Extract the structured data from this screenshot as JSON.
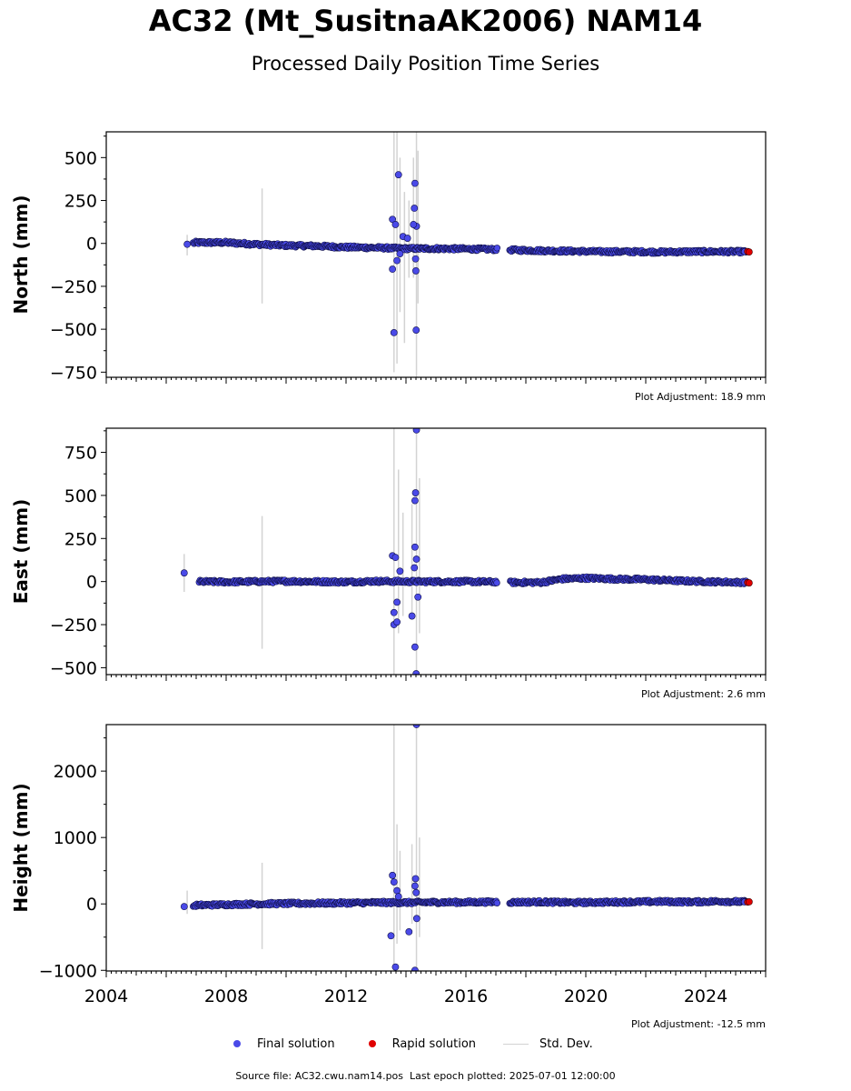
{
  "title": "AC32 (Mt_SusitnaAK2006) NAM14",
  "subtitle": "Processed Daily Position Time Series",
  "legend": {
    "final_label": "Final solution",
    "rapid_label": "Rapid solution",
    "std_label": "Std. Dev."
  },
  "footer": {
    "source_label": "Source file: AC32.cwu.nam14.pos",
    "last_epoch_label": "Last epoch plotted: 2025-07-01 12:00:00"
  },
  "colors": {
    "final": "#4a4ae8",
    "rapid": "#e00000",
    "std": "#d3d3d3",
    "outline": "#000000"
  },
  "chart_data": [
    {
      "type": "scatter",
      "ylabel": "North (mm)",
      "adjustment_label": "Plot Adjustment: 18.9 mm",
      "xlim": [
        2004,
        2026
      ],
      "ylim": [
        -780,
        650
      ],
      "yticks": [
        500,
        250,
        0,
        -250,
        -500,
        -750
      ],
      "ytick_labels": [
        "500",
        "250",
        "0",
        "−250",
        "−500",
        "−750"
      ],
      "trend": [
        [
          2006.7,
          -5
        ],
        [
          2007.0,
          5
        ],
        [
          2008.0,
          5
        ],
        [
          2009.0,
          -5
        ],
        [
          2010.0,
          -12
        ],
        [
          2011.0,
          -15
        ],
        [
          2012.0,
          -22
        ],
        [
          2013.0,
          -25
        ],
        [
          2014.0,
          -30
        ],
        [
          2015.0,
          -30
        ],
        [
          2016.0,
          -32
        ],
        [
          2017.0,
          -35
        ],
        [
          2017.5,
          -38
        ],
        [
          2018.5,
          -42
        ],
        [
          2019.5,
          -45
        ],
        [
          2020.5,
          -48
        ],
        [
          2021.5,
          -48
        ],
        [
          2022.5,
          -50
        ],
        [
          2023.5,
          -48
        ],
        [
          2024.5,
          -48
        ],
        [
          2025.4,
          -48
        ]
      ],
      "gaps": [
        [
          2017.05,
          2017.45
        ]
      ],
      "outliers": [
        [
          2006.7,
          -5
        ],
        [
          2013.55,
          140
        ],
        [
          2013.65,
          110
        ],
        [
          2013.75,
          400
        ],
        [
          2013.6,
          -520
        ],
        [
          2013.55,
          -150
        ],
        [
          2013.7,
          -100
        ],
        [
          2013.8,
          -60
        ],
        [
          2013.9,
          40
        ],
        [
          2014.05,
          30
        ],
        [
          2014.3,
          350
        ],
        [
          2014.28,
          205
        ],
        [
          2014.35,
          100
        ],
        [
          2014.32,
          -90
        ],
        [
          2014.33,
          -160
        ],
        [
          2014.34,
          -505
        ],
        [
          2014.25,
          110
        ]
      ],
      "std_bars": [
        [
          2006.7,
          -70,
          50
        ],
        [
          2009.2,
          -350,
          320
        ],
        [
          2013.6,
          -750,
          650
        ],
        [
          2013.7,
          -700,
          650
        ],
        [
          2013.8,
          -400,
          500
        ],
        [
          2013.95,
          -580,
          300
        ],
        [
          2014.1,
          -200,
          250
        ],
        [
          2014.35,
          -780,
          650
        ],
        [
          2014.4,
          -350,
          540
        ],
        [
          2014.25,
          -200,
          500
        ]
      ],
      "final_last": [
        2025.3,
        -48
      ],
      "rapid_points": [
        [
          2025.4,
          -47
        ],
        [
          2025.45,
          -50
        ]
      ]
    },
    {
      "type": "scatter",
      "ylabel": "East (mm)",
      "adjustment_label": "Plot Adjustment: 2.6 mm",
      "xlim": [
        2004,
        2026
      ],
      "ylim": [
        -540,
        890
      ],
      "yticks": [
        750,
        500,
        250,
        0,
        -250,
        -500
      ],
      "ytick_labels": [
        "750",
        "500",
        "250",
        "0",
        "−250",
        "−500"
      ],
      "trend": [
        [
          2006.9,
          0
        ],
        [
          2008.0,
          -2
        ],
        [
          2009.0,
          0
        ],
        [
          2010.0,
          2
        ],
        [
          2011.0,
          0
        ],
        [
          2012.0,
          -2
        ],
        [
          2013.0,
          2
        ],
        [
          2014.0,
          0
        ],
        [
          2015.0,
          0
        ],
        [
          2016.0,
          0
        ],
        [
          2017.0,
          -2
        ],
        [
          2017.5,
          -5
        ],
        [
          2018.5,
          -5
        ],
        [
          2019.2,
          15
        ],
        [
          2020.0,
          20
        ],
        [
          2021.0,
          15
        ],
        [
          2022.0,
          12
        ],
        [
          2023.0,
          5
        ],
        [
          2024.0,
          0
        ],
        [
          2024.8,
          -3
        ],
        [
          2025.4,
          -5
        ]
      ],
      "gaps": [
        [
          2017.05,
          2017.45
        ]
      ],
      "outliers": [
        [
          2006.6,
          50
        ],
        [
          2013.55,
          150
        ],
        [
          2013.6,
          -180
        ],
        [
          2013.6,
          -250
        ],
        [
          2013.7,
          -235
        ],
        [
          2013.7,
          -120
        ],
        [
          2013.65,
          140
        ],
        [
          2013.8,
          60
        ],
        [
          2014.2,
          -200
        ],
        [
          2014.3,
          470
        ],
        [
          2014.32,
          515
        ],
        [
          2014.3,
          200
        ],
        [
          2014.35,
          130
        ],
        [
          2014.3,
          -380
        ],
        [
          2014.34,
          -535
        ],
        [
          2014.35,
          880
        ],
        [
          2014.4,
          -90
        ],
        [
          2014.28,
          80
        ]
      ],
      "std_bars": [
        [
          2006.6,
          -60,
          160
        ],
        [
          2009.2,
          -390,
          380
        ],
        [
          2013.6,
          -540,
          890
        ],
        [
          2013.75,
          -300,
          650
        ],
        [
          2013.9,
          -200,
          400
        ],
        [
          2014.35,
          -540,
          890
        ],
        [
          2014.45,
          -300,
          600
        ],
        [
          2014.2,
          -200,
          450
        ]
      ],
      "final_last": [
        2025.3,
        -5
      ],
      "rapid_points": [
        [
          2025.4,
          -6
        ],
        [
          2025.45,
          -8
        ]
      ]
    },
    {
      "type": "scatter",
      "ylabel": "Height (mm)",
      "adjustment_label": "Plot Adjustment: -12.5 mm",
      "xlim": [
        2004,
        2026
      ],
      "ylim": [
        -1010,
        2700
      ],
      "yticks": [
        2000,
        1000,
        0,
        -1000
      ],
      "ytick_labels": [
        "2000",
        "1000",
        "0",
        "−1000"
      ],
      "xticks": [
        2004,
        2008,
        2012,
        2016,
        2020,
        2024
      ],
      "xtick_labels": [
        "2004",
        "2008",
        "2012",
        "2016",
        "2020",
        "2024"
      ],
      "trend": [
        [
          2006.7,
          -40
        ],
        [
          2007.0,
          -20
        ],
        [
          2008.0,
          -10
        ],
        [
          2009.0,
          0
        ],
        [
          2010.0,
          5
        ],
        [
          2011.0,
          10
        ],
        [
          2012.0,
          15
        ],
        [
          2013.0,
          20
        ],
        [
          2014.0,
          20
        ],
        [
          2015.0,
          25
        ],
        [
          2016.0,
          25
        ],
        [
          2017.0,
          30
        ],
        [
          2017.5,
          25
        ],
        [
          2018.5,
          30
        ],
        [
          2019.5,
          20
        ],
        [
          2020.5,
          25
        ],
        [
          2021.5,
          30
        ],
        [
          2022.5,
          35
        ],
        [
          2023.5,
          30
        ],
        [
          2024.5,
          40
        ],
        [
          2025.4,
          30
        ]
      ],
      "gaps": [
        [
          2017.05,
          2017.45
        ]
      ],
      "outliers": [
        [
          2006.6,
          -40
        ],
        [
          2013.55,
          430
        ],
        [
          2013.6,
          330
        ],
        [
          2013.7,
          200
        ],
        [
          2013.5,
          -480
        ],
        [
          2013.65,
          -950
        ],
        [
          2014.1,
          -420
        ],
        [
          2014.3,
          270
        ],
        [
          2014.32,
          380
        ],
        [
          2014.34,
          170
        ],
        [
          2014.36,
          -220
        ],
        [
          2014.3,
          -1000
        ],
        [
          2014.35,
          2700
        ],
        [
          2013.75,
          110
        ]
      ],
      "std_bars": [
        [
          2006.7,
          -150,
          200
        ],
        [
          2009.2,
          -680,
          620
        ],
        [
          2013.6,
          -1010,
          2700
        ],
        [
          2013.7,
          -600,
          1200
        ],
        [
          2013.8,
          -400,
          800
        ],
        [
          2014.35,
          -1010,
          2700
        ],
        [
          2014.45,
          -500,
          1000
        ],
        [
          2014.2,
          -300,
          900
        ]
      ],
      "final_last": [
        2025.3,
        30
      ],
      "rapid_points": [
        [
          2025.4,
          28
        ],
        [
          2025.45,
          32
        ]
      ]
    }
  ]
}
